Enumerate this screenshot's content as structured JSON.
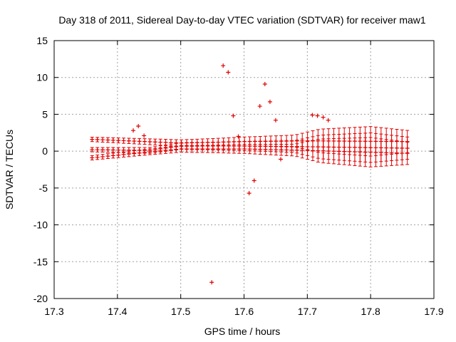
{
  "chart_data": {
    "type": "scatter",
    "title": "Day 318 of 2011, Sidereal Day-to-day VTEC variation (SDTVAR) for receiver maw1",
    "xlabel": "GPS time / hours",
    "ylabel": "SDTVAR / TECUs",
    "xlim": [
      17.3,
      17.9
    ],
    "ylim": [
      -20,
      15
    ],
    "xticks": [
      "17.3",
      "17.4",
      "17.5",
      "17.6",
      "17.7",
      "17.8",
      "17.9"
    ],
    "yticks": [
      "-20",
      "-15",
      "-10",
      "-5",
      "0",
      "5",
      "10",
      "15"
    ],
    "grid": true,
    "marker": "+",
    "color": "#e00000",
    "series": [
      {
        "name": "band-upper",
        "x_start": 17.36,
        "x_end": 17.86,
        "step": 0.0083,
        "y_at": [
          [
            17.36,
            1.6
          ],
          [
            17.5,
            1.1
          ],
          [
            17.6,
            1.3
          ],
          [
            17.7,
            1.4
          ],
          [
            17.86,
            1.3
          ]
        ]
      },
      {
        "name": "band-middle",
        "x_start": 17.36,
        "x_end": 17.86,
        "step": 0.0083,
        "y_at": [
          [
            17.36,
            0.2
          ],
          [
            17.45,
            0.1
          ],
          [
            17.5,
            0.7
          ],
          [
            17.6,
            0.7
          ],
          [
            17.7,
            0.6
          ],
          [
            17.86,
            0.4
          ]
        ]
      },
      {
        "name": "band-lower",
        "x_start": 17.36,
        "x_end": 17.86,
        "step": 0.0083,
        "y_at": [
          [
            17.36,
            -0.9
          ],
          [
            17.45,
            -0.1
          ],
          [
            17.5,
            0.3
          ],
          [
            17.6,
            0.3
          ],
          [
            17.7,
            0.1
          ],
          [
            17.86,
            -0.3
          ]
        ]
      }
    ],
    "error_bar_halfwidth_at": [
      [
        17.36,
        0.3
      ],
      [
        17.55,
        0.5
      ],
      [
        17.68,
        0.8
      ],
      [
        17.72,
        1.6
      ],
      [
        17.8,
        2.0
      ],
      [
        17.86,
        1.5
      ]
    ],
    "outliers": [
      {
        "x": 17.425,
        "y": 2.8
      },
      {
        "x": 17.433,
        "y": 3.4
      },
      {
        "x": 17.442,
        "y": 2.1
      },
      {
        "x": 17.549,
        "y": -17.8
      },
      {
        "x": 17.567,
        "y": 11.6
      },
      {
        "x": 17.575,
        "y": 10.7
      },
      {
        "x": 17.583,
        "y": 4.8
      },
      {
        "x": 17.591,
        "y": 2.0
      },
      {
        "x": 17.608,
        "y": -5.7
      },
      {
        "x": 17.616,
        "y": -4.0
      },
      {
        "x": 17.625,
        "y": 6.1
      },
      {
        "x": 17.633,
        "y": 9.1
      },
      {
        "x": 17.641,
        "y": 6.7
      },
      {
        "x": 17.65,
        "y": 4.2
      },
      {
        "x": 17.658,
        "y": -1.1
      },
      {
        "x": 17.708,
        "y": 4.9
      },
      {
        "x": 17.716,
        "y": 4.8
      },
      {
        "x": 17.725,
        "y": 4.6
      },
      {
        "x": 17.733,
        "y": 4.2
      }
    ]
  }
}
